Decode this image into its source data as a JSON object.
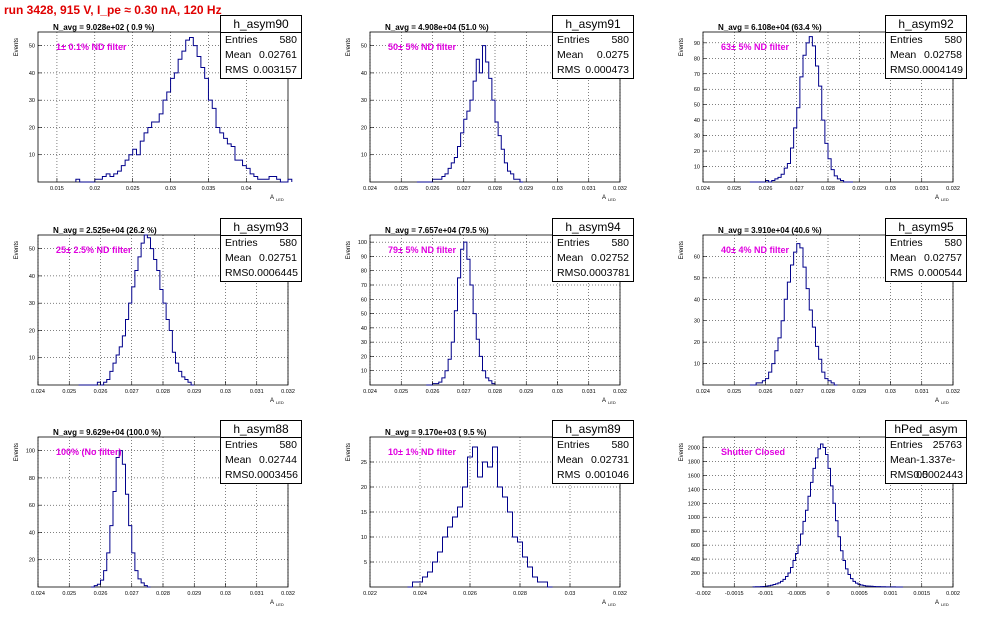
{
  "title": "run 3428,   915 V, I_pe ≈ 0.30 nA, 120 Hz",
  "axis_labels": {
    "x": "A",
    "x_sub": "LED",
    "y": "Events"
  },
  "colors": {
    "hist": "#00008b",
    "title": "#e00000",
    "filter": "#e000e0"
  },
  "chart_data": [
    {
      "type": "histogram",
      "name": "h_asym90",
      "stats": {
        "entries": "580",
        "mean": "0.02761",
        "rms": "0.003157"
      },
      "navg": "N_avg = 9.028e+02 ( 0.9 %)",
      "filter": "1± 0.1% ND filter",
      "xlim": [
        0.0125,
        0.0455
      ],
      "ylim": [
        0,
        55
      ],
      "xticks": [
        0.015,
        0.02,
        0.025,
        0.03,
        0.035,
        0.04
      ],
      "xtick_labels": [
        "0.015",
        "0.02",
        "0.025",
        "0.03",
        "0.035",
        "0.04"
      ],
      "yticks": [
        10,
        20,
        30,
        40,
        50
      ],
      "bins": {
        "start": 0.0175,
        "width": 0.0005,
        "counts": [
          1,
          0,
          0,
          0,
          0,
          1,
          1,
          2,
          3,
          2,
          3,
          4,
          6,
          8,
          10,
          12,
          10,
          15,
          18,
          20,
          22,
          22,
          25,
          30,
          33,
          38,
          40,
          45,
          48,
          52,
          53,
          50,
          46,
          42,
          38,
          30,
          27,
          20,
          18,
          16,
          14,
          13,
          8,
          8,
          6,
          5,
          3,
          2,
          1,
          1,
          1,
          2,
          2,
          1,
          0,
          0,
          1
        ]
      }
    },
    {
      "type": "histogram",
      "name": "h_asym91",
      "stats": {
        "entries": "580",
        "mean": "0.0275",
        "rms": "0.000473"
      },
      "navg": "N_avg = 4.908e+04 (51.0 %)",
      "filter": "50± 5% ND filter",
      "xlim": [
        0.024,
        0.032
      ],
      "ylim": [
        0,
        55
      ],
      "xticks": [
        0.024,
        0.025,
        0.026,
        0.027,
        0.028,
        0.029,
        0.03,
        0.031,
        0.032
      ],
      "xtick_labels": [
        "0.024",
        "0.025",
        "0.026",
        "0.027",
        "0.028",
        "0.029",
        "0.03",
        "0.031",
        "0.032"
      ],
      "yticks": [
        10,
        20,
        30,
        40,
        50
      ],
      "bins": {
        "start": 0.0255,
        "width": 0.0001,
        "counts": [
          0,
          0,
          0,
          0,
          0,
          1,
          1,
          1,
          2,
          3,
          5,
          7,
          9,
          13,
          18,
          23,
          26,
          30,
          37,
          45,
          40,
          50,
          44,
          38,
          30,
          22,
          17,
          12,
          7,
          4,
          3,
          1,
          1,
          0
        ]
      }
    },
    {
      "type": "histogram",
      "name": "h_asym92",
      "stats": {
        "entries": "580",
        "mean": "0.02758",
        "rms": "0.0004149"
      },
      "navg": "N_avg = 6.108e+04 (63.4 %)",
      "filter": "63± 5% ND filter",
      "xlim": [
        0.024,
        0.032
      ],
      "ylim": [
        0,
        97
      ],
      "xticks": [
        0.024,
        0.025,
        0.026,
        0.027,
        0.028,
        0.029,
        0.03,
        0.031,
        0.032
      ],
      "xtick_labels": [
        "0.024",
        "0.025",
        "0.026",
        "0.027",
        "0.028",
        "0.029",
        "0.03",
        "0.031",
        "0.032"
      ],
      "yticks": [
        10,
        20,
        30,
        40,
        50,
        60,
        70,
        80,
        90
      ],
      "bins": {
        "start": 0.0255,
        "width": 0.0001,
        "counts": [
          0,
          0,
          0,
          0,
          0,
          1,
          0,
          1,
          2,
          3,
          5,
          9,
          12,
          22,
          35,
          48,
          68,
          82,
          90,
          94,
          88,
          75,
          62,
          40,
          25,
          15,
          8,
          4,
          2,
          1,
          0,
          0,
          0
        ]
      }
    },
    {
      "type": "histogram",
      "name": "h_asym93",
      "stats": {
        "entries": "580",
        "mean": "0.02751",
        "rms": "0.0006445"
      },
      "navg": "N_avg = 2.525e+04 (26.2 %)",
      "filter": "25± 2.5% ND filter",
      "xlim": [
        0.024,
        0.032
      ],
      "ylim": [
        0,
        55
      ],
      "xticks": [
        0.024,
        0.025,
        0.026,
        0.027,
        0.028,
        0.029,
        0.03,
        0.031,
        0.032
      ],
      "xtick_labels": [
        "0.024",
        "0.025",
        "0.026",
        "0.027",
        "0.028",
        "0.029",
        "0.03",
        "0.031",
        "0.032"
      ],
      "yticks": [
        10,
        20,
        30,
        40,
        50
      ],
      "bins": {
        "start": 0.0253,
        "width": 0.0001,
        "counts": [
          0,
          0,
          0,
          0,
          0,
          0,
          1,
          0,
          1,
          2,
          5,
          8,
          11,
          14,
          18,
          24,
          30,
          36,
          42,
          47,
          52,
          55,
          54,
          50,
          46,
          42,
          35,
          30,
          24,
          20,
          12,
          8,
          5,
          3,
          2,
          1,
          0
        ]
      }
    },
    {
      "type": "histogram",
      "name": "h_asym94",
      "stats": {
        "entries": "580",
        "mean": "0.02752",
        "rms": "0.0003781"
      },
      "navg": "N_avg = 7.657e+04 (79.5 %)",
      "filter": "79± 5% ND filter",
      "xlim": [
        0.024,
        0.032
      ],
      "ylim": [
        0,
        105
      ],
      "xticks": [
        0.024,
        0.025,
        0.026,
        0.027,
        0.028,
        0.029,
        0.03,
        0.031,
        0.032
      ],
      "xtick_labels": [
        "0.024",
        "0.025",
        "0.026",
        "0.027",
        "0.028",
        "0.029",
        "0.03",
        "0.031",
        "0.032"
      ],
      "yticks": [
        10,
        20,
        30,
        40,
        50,
        60,
        70,
        80,
        90,
        100
      ],
      "bins": {
        "start": 0.0258,
        "width": 0.0001,
        "counts": [
          0,
          0,
          1,
          1,
          2,
          5,
          10,
          18,
          30,
          52,
          75,
          95,
          100,
          88,
          70,
          50,
          32,
          20,
          10,
          5,
          3,
          1
        ]
      }
    },
    {
      "type": "histogram",
      "name": "h_asym95",
      "stats": {
        "entries": "580",
        "mean": "0.02757",
        "rms": "0.000544"
      },
      "navg": "N_avg = 3.910e+04 (40.6 %)",
      "filter": "40± 4% ND filter",
      "xlim": [
        0.024,
        0.032
      ],
      "ylim": [
        0,
        70
      ],
      "xticks": [
        0.024,
        0.025,
        0.026,
        0.027,
        0.028,
        0.029,
        0.03,
        0.031,
        0.032
      ],
      "xtick_labels": [
        "0.024",
        "0.025",
        "0.026",
        "0.027",
        "0.028",
        "0.029",
        "0.03",
        "0.031",
        "0.032"
      ],
      "yticks": [
        10,
        20,
        30,
        40,
        50,
        60
      ],
      "bins": {
        "start": 0.0255,
        "width": 0.0001,
        "counts": [
          0,
          0,
          1,
          1,
          2,
          3,
          6,
          10,
          16,
          22,
          30,
          40,
          48,
          56,
          62,
          66,
          64,
          55,
          45,
          35,
          27,
          18,
          12,
          6,
          3,
          2,
          1,
          0
        ]
      }
    },
    {
      "type": "histogram",
      "name": "h_asym88",
      "stats": {
        "entries": "580",
        "mean": "0.02744",
        "rms": "0.0003456"
      },
      "navg": "N_avg = 9.629e+04 (100.0 %)",
      "filter": "100% (No filter)",
      "xlim": [
        0.024,
        0.032
      ],
      "ylim": [
        0,
        110
      ],
      "xticks": [
        0.024,
        0.025,
        0.026,
        0.027,
        0.028,
        0.029,
        0.03,
        0.031,
        0.032
      ],
      "xtick_labels": [
        "0.024",
        "0.025",
        "0.026",
        "0.027",
        "0.028",
        "0.029",
        "0.03",
        "0.031",
        "0.032"
      ],
      "yticks": [
        20,
        40,
        60,
        80,
        100
      ],
      "bins": {
        "start": 0.0257,
        "width": 0.0001,
        "counts": [
          0,
          1,
          2,
          5,
          12,
          25,
          45,
          70,
          95,
          100,
          90,
          68,
          45,
          25,
          12,
          6,
          3,
          1,
          0
        ]
      }
    },
    {
      "type": "histogram",
      "name": "h_asym89",
      "stats": {
        "entries": "580",
        "mean": "0.02731",
        "rms": "0.001046"
      },
      "navg": "N_avg = 9.170e+03 ( 9.5 %)",
      "filter": "10± 1% ND filter",
      "xlim": [
        0.022,
        0.032
      ],
      "ylim": [
        0,
        30
      ],
      "xticks": [
        0.022,
        0.024,
        0.026,
        0.028,
        0.03,
        0.032
      ],
      "xtick_labels": [
        "0.022",
        "0.024",
        "0.026",
        "0.028",
        "0.03",
        "0.032"
      ],
      "yticks": [
        5,
        10,
        15,
        20,
        25
      ],
      "bins": {
        "start": 0.0235,
        "width": 0.0002,
        "counts": [
          0,
          1,
          1,
          2,
          3,
          5,
          7,
          10,
          12,
          14,
          16,
          20,
          26,
          28,
          22,
          25,
          24,
          28,
          20,
          18,
          15,
          10,
          9,
          6,
          4,
          2,
          1,
          1,
          0
        ]
      }
    },
    {
      "type": "histogram",
      "name": "hPed_asym",
      "stats": {
        "entries": "25763",
        "mean": "-1.337e-05",
        "rms": "0.0002443"
      },
      "navg": "",
      "filter": "Shutter Closed",
      "xlim": [
        -0.002,
        0.002
      ],
      "ylim": [
        0,
        2150
      ],
      "xticks": [
        -0.002,
        -0.0015,
        -0.001,
        -0.0005,
        0,
        0.0005,
        0.001,
        0.0015,
        0.002
      ],
      "xtick_labels": [
        "-0.002",
        "-0.0015",
        "-0.001",
        "-0.0005",
        "0",
        "0.0005",
        "0.001",
        "0.0015",
        "0.002"
      ],
      "yticks": [
        200,
        400,
        600,
        800,
        1000,
        1200,
        1400,
        1600,
        1800,
        2000
      ],
      "bins": {
        "start": -0.0012,
        "width": 4e-05,
        "counts": [
          2,
          3,
          4,
          6,
          8,
          12,
          18,
          25,
          35,
          45,
          60,
          80,
          110,
          150,
          200,
          280,
          380,
          480,
          600,
          760,
          940,
          1100,
          1300,
          1500,
          1700,
          1850,
          1980,
          2050,
          2000,
          1900,
          1700,
          1450,
          1200,
          950,
          720,
          520,
          380,
          260,
          180,
          120,
          80,
          55,
          38,
          28,
          20,
          15,
          12,
          10,
          8,
          6,
          5,
          4,
          3,
          2,
          2,
          1,
          1,
          0,
          0,
          0
        ]
      }
    }
  ]
}
